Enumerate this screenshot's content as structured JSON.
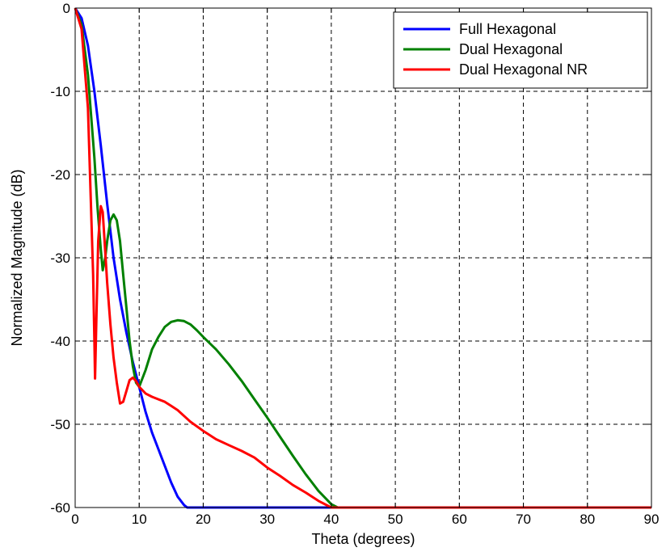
{
  "chart_data": {
    "type": "line",
    "title": "",
    "xlabel": "Theta (degrees)",
    "ylabel": "Normalized Magnitude (dB)",
    "xlim": [
      0,
      90
    ],
    "ylim": [
      -60,
      0
    ],
    "xticks": [
      0,
      10,
      20,
      30,
      40,
      50,
      60,
      70,
      80,
      90
    ],
    "yticks": [
      0,
      -10,
      -20,
      -30,
      -40,
      -50,
      -60
    ],
    "grid": true,
    "legend_position": "top-right",
    "series": [
      {
        "name": "Full Hexagonal",
        "color": "#0000ff",
        "x": [
          0,
          1,
          2,
          3,
          4,
          5,
          6,
          7,
          8,
          9,
          10,
          11,
          12,
          13,
          14,
          15,
          16,
          17,
          17.5,
          18,
          20,
          30,
          40,
          50,
          60,
          70,
          80,
          90
        ],
        "y": [
          0,
          -1.2,
          -4.5,
          -10,
          -16.5,
          -23.5,
          -30,
          -35,
          -39,
          -42.5,
          -45.5,
          -48.5,
          -51,
          -53,
          -55,
          -57,
          -58.7,
          -59.7,
          -60,
          -60,
          -60,
          -60,
          -60,
          -60,
          -60,
          -60,
          -60,
          -60
        ]
      },
      {
        "name": "Dual Hexagonal",
        "color": "#008000",
        "x": [
          0,
          1,
          2,
          3,
          3.5,
          4,
          4.3,
          4.7,
          5,
          5.5,
          6,
          6.5,
          7,
          7.5,
          8,
          8.5,
          9,
          9.5,
          10,
          11,
          12,
          13,
          14,
          15,
          16,
          17,
          18,
          19,
          20,
          22,
          24,
          26,
          28,
          30,
          32,
          34,
          36,
          38,
          40,
          41,
          42,
          50,
          60,
          70,
          80,
          90
        ],
        "y": [
          0,
          -2,
          -8,
          -18,
          -24,
          -29,
          -31.5,
          -30,
          -28,
          -25.5,
          -24.8,
          -25.5,
          -28,
          -32,
          -36,
          -40,
          -43,
          -45,
          -45.5,
          -43.5,
          -41,
          -39.5,
          -38.3,
          -37.7,
          -37.5,
          -37.6,
          -38,
          -38.7,
          -39.5,
          -41,
          -42.8,
          -44.8,
          -47,
          -49.2,
          -51.5,
          -53.8,
          -56,
          -58,
          -59.6,
          -60,
          -60,
          -60,
          -60,
          -60,
          -60,
          -60
        ]
      },
      {
        "name": "Dual Hexagonal NR",
        "color": "#ff0000",
        "x": [
          0,
          1,
          2,
          2.8,
          3,
          3.1,
          3.3,
          3.6,
          4,
          4.3,
          4.6,
          5,
          5.5,
          6,
          6.5,
          7,
          7.5,
          8,
          8.5,
          9,
          9.5,
          10,
          11,
          12,
          13,
          14,
          15,
          16,
          17,
          18,
          20,
          22,
          24,
          26,
          28,
          30,
          32,
          34,
          36,
          38,
          40,
          41,
          50,
          60,
          70,
          80,
          90
        ],
        "y": [
          0,
          -2.5,
          -12,
          -32,
          -40,
          -44.5,
          -38,
          -28,
          -23.8,
          -24.5,
          -28,
          -33,
          -38,
          -42,
          -45,
          -47.5,
          -47.3,
          -46,
          -44.7,
          -44.4,
          -44.8,
          -45.5,
          -46.3,
          -46.7,
          -47,
          -47.3,
          -47.8,
          -48.3,
          -49,
          -49.7,
          -50.8,
          -51.8,
          -52.5,
          -53.2,
          -54,
          -55.2,
          -56.2,
          -57.3,
          -58.2,
          -59.2,
          -60,
          -60,
          -60,
          -60,
          -60,
          -60,
          -60
        ]
      }
    ]
  }
}
